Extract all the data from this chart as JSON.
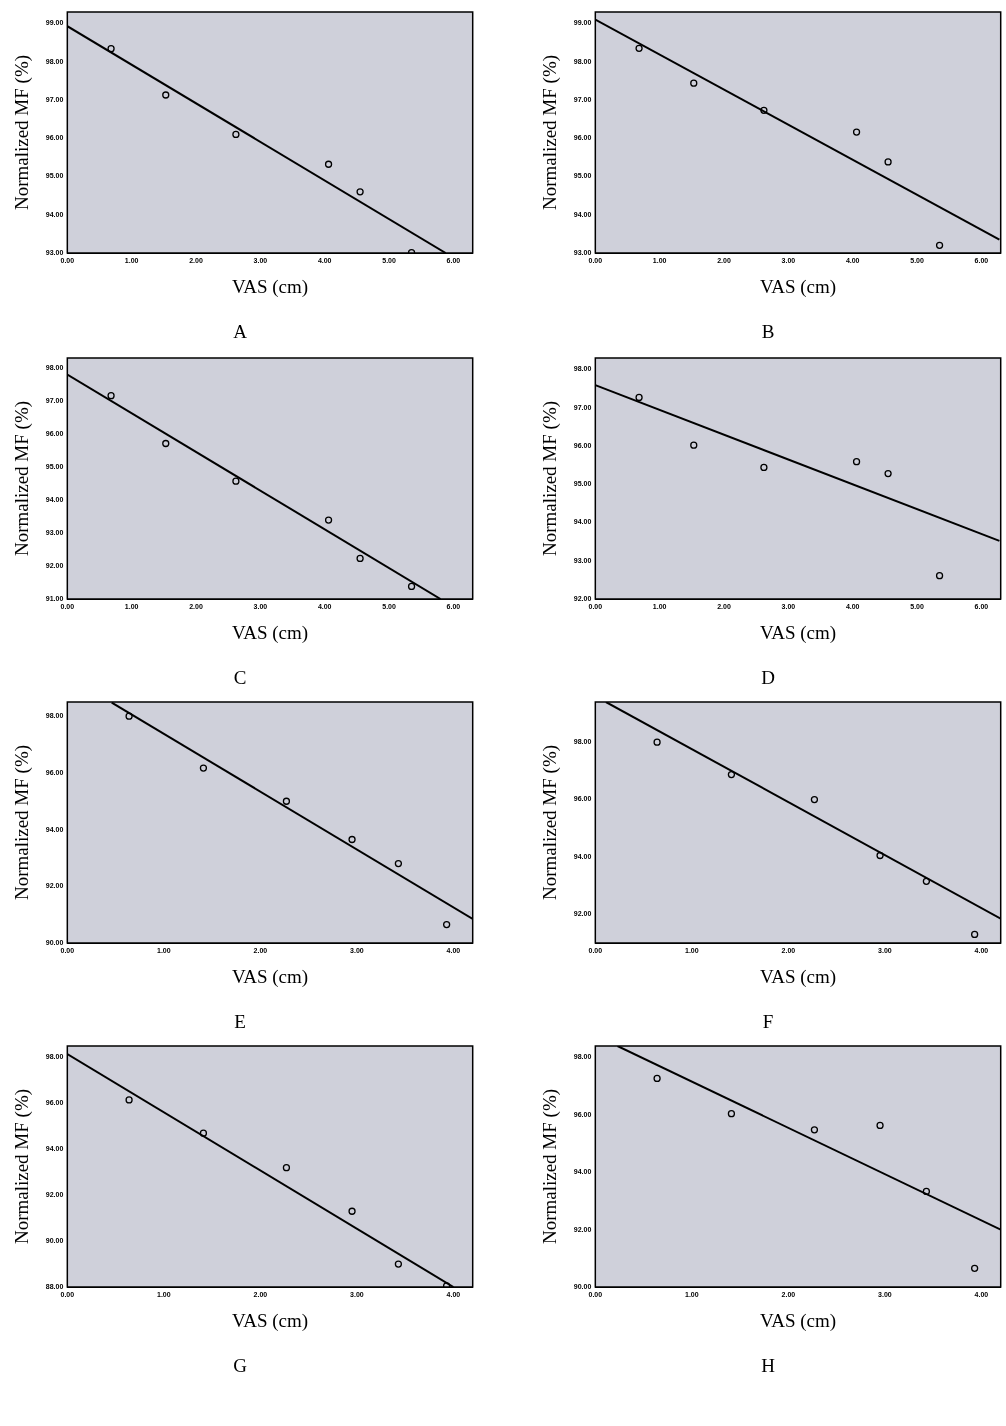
{
  "chart_data": [
    {
      "type": "scatter",
      "title": "A",
      "xlabel": "VAS (cm)",
      "ylabel": "Normalized MF (%)",
      "xlim": [
        0,
        6.3
      ],
      "ylim": [
        93,
        99.3
      ],
      "xticks": [
        {
          "value": 0,
          "label": "0.00"
        },
        {
          "value": 1,
          "label": "1.00"
        },
        {
          "value": 2,
          "label": "2.00"
        },
        {
          "value": 3,
          "label": "3.00"
        },
        {
          "value": 4,
          "label": "4.00"
        },
        {
          "value": 5,
          "label": "5.00"
        },
        {
          "value": 6,
          "label": "6.00"
        }
      ],
      "yticks": [
        {
          "value": 93,
          "label": "93.00"
        },
        {
          "value": 94,
          "label": "94.00"
        },
        {
          "value": 95,
          "label": "95.00"
        },
        {
          "value": 96,
          "label": "96.00"
        },
        {
          "value": 97,
          "label": "97.00"
        },
        {
          "value": 98,
          "label": "98.00"
        },
        {
          "value": 99,
          "label": "99.00"
        }
      ],
      "grid": false,
      "series": [
        {
          "color": "#000000",
          "marker": "circle",
          "x": [
            0.68,
            1.53,
            2.62,
            4.06,
            4.55,
            5.35
          ],
          "values": [
            98.34,
            97.13,
            96.1,
            95.32,
            94.6,
            93.01
          ]
        },
        {
          "type": "line",
          "color": "#000000",
          "marker": "none",
          "x": [
            0,
            5.88
          ],
          "values": [
            98.93,
            93
          ]
        }
      ]
    },
    {
      "type": "scatter",
      "title": "B",
      "xlabel": "VAS (cm)",
      "ylabel": "Normalized MF (%)",
      "xlim": [
        0,
        6.3
      ],
      "ylim": [
        93,
        99.3
      ],
      "xticks": [
        {
          "value": 0,
          "label": "0.00"
        },
        {
          "value": 1,
          "label": "1.00"
        },
        {
          "value": 2,
          "label": "2.00"
        },
        {
          "value": 3,
          "label": "3.00"
        },
        {
          "value": 4,
          "label": "4.00"
        },
        {
          "value": 5,
          "label": "5.00"
        },
        {
          "value": 6,
          "label": "6.00"
        }
      ],
      "yticks": [
        {
          "value": 93,
          "label": "93.00"
        },
        {
          "value": 94,
          "label": "94.00"
        },
        {
          "value": 95,
          "label": "95.00"
        },
        {
          "value": 96,
          "label": "96.00"
        },
        {
          "value": 97,
          "label": "97.00"
        },
        {
          "value": 98,
          "label": "98.00"
        },
        {
          "value": 99,
          "label": "99.00"
        }
      ],
      "grid": false,
      "series": [
        {
          "color": "#000000",
          "marker": "circle",
          "x": [
            0.68,
            1.53,
            2.62,
            4.06,
            4.55,
            5.35
          ],
          "values": [
            98.35,
            97.44,
            96.73,
            96.16,
            95.38,
            93.2
          ]
        },
        {
          "type": "line",
          "color": "#000000",
          "marker": "none",
          "x": [
            0,
            6.28
          ],
          "values": [
            99.1,
            93.35
          ]
        }
      ]
    },
    {
      "type": "scatter",
      "title": "C",
      "xlabel": "VAS (cm)",
      "ylabel": "Normalized MF (%)",
      "xlim": [
        0,
        6.3
      ],
      "ylim": [
        91,
        98.3
      ],
      "xticks": [
        {
          "value": 0,
          "label": "0.00"
        },
        {
          "value": 1,
          "label": "1.00"
        },
        {
          "value": 2,
          "label": "2.00"
        },
        {
          "value": 3,
          "label": "3.00"
        },
        {
          "value": 4,
          "label": "4.00"
        },
        {
          "value": 5,
          "label": "5.00"
        },
        {
          "value": 6,
          "label": "6.00"
        }
      ],
      "yticks": [
        {
          "value": 91,
          "label": "91.00"
        },
        {
          "value": 92,
          "label": "92.00"
        },
        {
          "value": 93,
          "label": "93.00"
        },
        {
          "value": 94,
          "label": "94.00"
        },
        {
          "value": 95,
          "label": "95.00"
        },
        {
          "value": 96,
          "label": "96.00"
        },
        {
          "value": 97,
          "label": "97.00"
        },
        {
          "value": 98,
          "label": "98.00"
        }
      ],
      "grid": false,
      "series": [
        {
          "color": "#000000",
          "marker": "circle",
          "x": [
            0.68,
            1.53,
            2.62,
            4.06,
            4.55,
            5.35
          ],
          "values": [
            97.16,
            95.71,
            94.57,
            93.39,
            92.23,
            91.38
          ]
        },
        {
          "type": "line",
          "color": "#000000",
          "marker": "none",
          "x": [
            0,
            5.8
          ],
          "values": [
            97.8,
            91
          ]
        }
      ]
    },
    {
      "type": "scatter",
      "title": "D",
      "xlabel": "VAS (cm)",
      "ylabel": "Normalized MF (%)",
      "xlim": [
        0,
        6.3
      ],
      "ylim": [
        92,
        98.3
      ],
      "xticks": [
        {
          "value": 0,
          "label": "0.00"
        },
        {
          "value": 1,
          "label": "1.00"
        },
        {
          "value": 2,
          "label": "2.00"
        },
        {
          "value": 3,
          "label": "3.00"
        },
        {
          "value": 4,
          "label": "4.00"
        },
        {
          "value": 5,
          "label": "5.00"
        },
        {
          "value": 6,
          "label": "6.00"
        }
      ],
      "yticks": [
        {
          "value": 92,
          "label": "92.00"
        },
        {
          "value": 93,
          "label": "93.00"
        },
        {
          "value": 94,
          "label": "94.00"
        },
        {
          "value": 95,
          "label": "95.00"
        },
        {
          "value": 96,
          "label": "96.00"
        },
        {
          "value": 97,
          "label": "97.00"
        },
        {
          "value": 98,
          "label": "98.00"
        }
      ],
      "grid": false,
      "series": [
        {
          "color": "#000000",
          "marker": "circle",
          "x": [
            0.68,
            1.53,
            2.62,
            4.06,
            4.55,
            5.35
          ],
          "values": [
            97.27,
            96.02,
            95.44,
            95.59,
            95.28,
            92.61
          ]
        },
        {
          "type": "line",
          "color": "#000000",
          "marker": "none",
          "x": [
            0,
            6.28
          ],
          "values": [
            97.59,
            93.52
          ]
        }
      ]
    },
    {
      "type": "scatter",
      "title": "E",
      "xlabel": "VAS (cm)",
      "ylabel": "Normalized MF (%)",
      "xlim": [
        0,
        4.2
      ],
      "ylim": [
        90,
        98.5
      ],
      "xticks": [
        {
          "value": 0,
          "label": "0.00"
        },
        {
          "value": 1,
          "label": "1.00"
        },
        {
          "value": 2,
          "label": "2.00"
        },
        {
          "value": 3,
          "label": "3.00"
        },
        {
          "value": 4,
          "label": "4.00"
        }
      ],
      "yticks": [
        {
          "value": 90,
          "label": "90.00"
        },
        {
          "value": 92,
          "label": "92.00"
        },
        {
          "value": 94,
          "label": "94.00"
        },
        {
          "value": 96,
          "label": "96.00"
        },
        {
          "value": 98,
          "label": "98.00"
        }
      ],
      "grid": false,
      "series": [
        {
          "color": "#000000",
          "marker": "circle",
          "x": [
            0.64,
            1.41,
            2.27,
            2.95,
            3.43,
            3.93
          ],
          "values": [
            98,
            96.17,
            95,
            93.65,
            92.8,
            90.65
          ]
        },
        {
          "type": "line",
          "color": "#000000",
          "marker": "none",
          "x": [
            0.46,
            4.2
          ],
          "values": [
            98.48,
            90.85
          ]
        }
      ]
    },
    {
      "type": "scatter",
      "title": "F",
      "xlabel": "VAS (cm)",
      "ylabel": "Normalized MF (%)",
      "xlim": [
        0,
        4.2
      ],
      "ylim": [
        91,
        99.4
      ],
      "xticks": [
        {
          "value": 0,
          "label": "0.00"
        },
        {
          "value": 1,
          "label": "1.00"
        },
        {
          "value": 2,
          "label": "2.00"
        },
        {
          "value": 3,
          "label": "3.00"
        },
        {
          "value": 4,
          "label": "4.00"
        }
      ],
      "yticks": [
        {
          "value": 92,
          "label": "92.00"
        },
        {
          "value": 94,
          "label": "94.00"
        },
        {
          "value": 96,
          "label": "96.00"
        },
        {
          "value": 98,
          "label": "98.00"
        }
      ],
      "grid": false,
      "series": [
        {
          "color": "#000000",
          "marker": "circle",
          "x": [
            0.64,
            1.41,
            2.27,
            2.95,
            3.43,
            3.93
          ],
          "values": [
            98,
            96.87,
            96,
            94.05,
            93.15,
            91.3
          ]
        },
        {
          "type": "line",
          "color": "#000000",
          "marker": "none",
          "x": [
            0.11,
            4.2
          ],
          "values": [
            99.4,
            91.85
          ]
        }
      ]
    },
    {
      "type": "scatter",
      "title": "G",
      "xlabel": "VAS (cm)",
      "ylabel": "Normalized MF (%)",
      "xlim": [
        0,
        4.2
      ],
      "ylim": [
        88,
        98.5
      ],
      "xticks": [
        {
          "value": 0,
          "label": "0.00"
        },
        {
          "value": 1,
          "label": "1.00"
        },
        {
          "value": 2,
          "label": "2.00"
        },
        {
          "value": 3,
          "label": "3.00"
        },
        {
          "value": 4,
          "label": "4.00"
        }
      ],
      "yticks": [
        {
          "value": 88,
          "label": "88.00"
        },
        {
          "value": 90,
          "label": "90.00"
        },
        {
          "value": 92,
          "label": "92.00"
        },
        {
          "value": 94,
          "label": "94.00"
        },
        {
          "value": 96,
          "label": "96.00"
        },
        {
          "value": 98,
          "label": "98.00"
        }
      ],
      "grid": false,
      "series": [
        {
          "color": "#000000",
          "marker": "circle",
          "x": [
            0.64,
            1.41,
            2.27,
            2.95,
            3.43,
            3.93
          ],
          "values": [
            96.15,
            94.7,
            93.2,
            91.3,
            89,
            88.05
          ]
        },
        {
          "type": "line",
          "color": "#000000",
          "marker": "none",
          "x": [
            0,
            4
          ],
          "values": [
            98.15,
            88
          ]
        }
      ]
    },
    {
      "type": "scatter",
      "title": "H",
      "xlabel": "VAS (cm)",
      "ylabel": "Normalized MF (%)",
      "xlim": [
        0,
        4.2
      ],
      "ylim": [
        90,
        98.4
      ],
      "xticks": [
        {
          "value": 0,
          "label": "0.00"
        },
        {
          "value": 1,
          "label": "1.00"
        },
        {
          "value": 2,
          "label": "2.00"
        },
        {
          "value": 3,
          "label": "3.00"
        },
        {
          "value": 4,
          "label": "4.00"
        }
      ],
      "yticks": [
        {
          "value": 90,
          "label": "90.00"
        },
        {
          "value": 92,
          "label": "92.00"
        },
        {
          "value": 94,
          "label": "94.00"
        },
        {
          "value": 96,
          "label": "96.00"
        },
        {
          "value": 98,
          "label": "98.00"
        }
      ],
      "grid": false,
      "series": [
        {
          "color": "#000000",
          "marker": "circle",
          "x": [
            0.64,
            1.41,
            2.27,
            2.95,
            3.43,
            3.93
          ],
          "values": [
            97.27,
            96.04,
            95.48,
            95.63,
            93.33,
            90.65
          ]
        },
        {
          "type": "line",
          "color": "#000000",
          "marker": "none",
          "x": [
            0.23,
            4.2
          ],
          "values": [
            98.4,
            92
          ]
        }
      ]
    }
  ]
}
